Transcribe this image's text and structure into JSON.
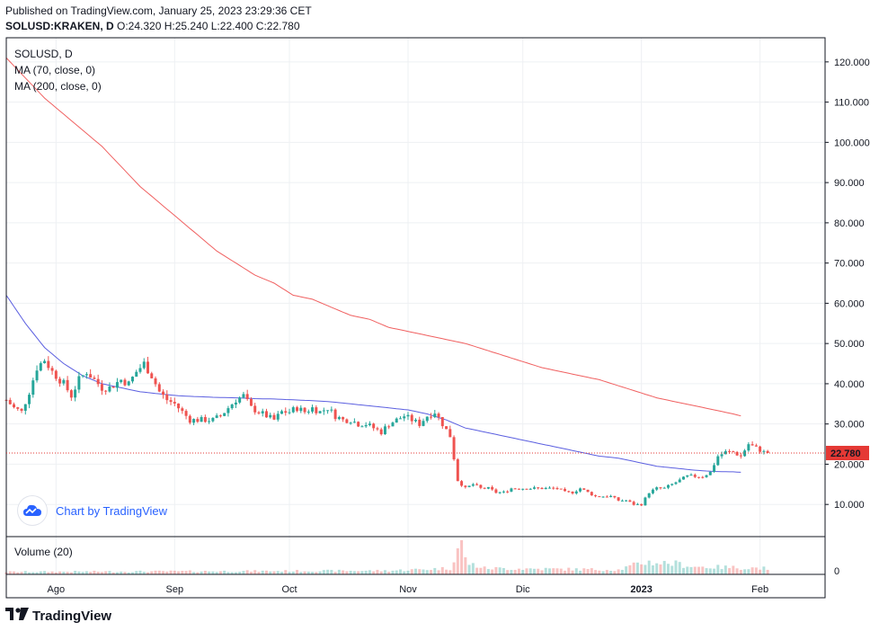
{
  "header": {
    "published": "Published on TradingView.com, January 25, 2023 23:29:36 CET",
    "symbol_line": "SOLUSD:KRAKEN, D",
    "ohlc": "O:24.320 H:25.240 L:22.400 C:22.780"
  },
  "legend": {
    "title": "SOLUSD, D",
    "ma70": "MA (70, close, 0)",
    "ma200": "MA (200, close, 0)"
  },
  "volume_title": "Volume (20)",
  "attribution": "Chart by TradingView",
  "footer_brand": "TradingView",
  "colors": {
    "up": "#26a69a",
    "down": "#ef5350",
    "ma70": "#5b5fe0",
    "ma200": "#f06060",
    "last_price": "#e53935",
    "grid": "#eef0f3"
  },
  "chart_data": {
    "type": "candlestick",
    "symbol": "SOLUSD",
    "interval": "D",
    "last_price": 22.78,
    "last_price_label": "22.780",
    "y_ticks": [
      10,
      20,
      30,
      40,
      50,
      60,
      70,
      80,
      90,
      100,
      110,
      120
    ],
    "y_tick_labels": [
      "10.000",
      "20.000",
      "30.000",
      "40.000",
      "50.000",
      "60.000",
      "70.000",
      "80.000",
      "90.000",
      "100.000",
      "110.000",
      "120.000"
    ],
    "ylim": [
      2,
      126
    ],
    "x_start_day": 0,
    "x_end_day": 214,
    "x_ticks": [
      {
        "day": 13,
        "label": "Ago"
      },
      {
        "day": 44,
        "label": "Sep"
      },
      {
        "day": 74,
        "label": "Oct"
      },
      {
        "day": 105,
        "label": "Nov"
      },
      {
        "day": 135,
        "label": "Dic"
      },
      {
        "day": 166,
        "label": "2023"
      },
      {
        "day": 197,
        "label": "Feb"
      }
    ],
    "price_anchors": [
      [
        0,
        36
      ],
      [
        2,
        34
      ],
      [
        4,
        33
      ],
      [
        6,
        38
      ],
      [
        8,
        44
      ],
      [
        10,
        46
      ],
      [
        12,
        43
      ],
      [
        15,
        40
      ],
      [
        17,
        37
      ],
      [
        19,
        41
      ],
      [
        21,
        43
      ],
      [
        23,
        41
      ],
      [
        25,
        39
      ],
      [
        27,
        39
      ],
      [
        30,
        41
      ],
      [
        32,
        40
      ],
      [
        34,
        43
      ],
      [
        36,
        45
      ],
      [
        38,
        42
      ],
      [
        40,
        38
      ],
      [
        42,
        36
      ],
      [
        44,
        35
      ],
      [
        46,
        33
      ],
      [
        48,
        31
      ],
      [
        50,
        31
      ],
      [
        52,
        31
      ],
      [
        54,
        31
      ],
      [
        56,
        32
      ],
      [
        58,
        34
      ],
      [
        60,
        36
      ],
      [
        62,
        37
      ],
      [
        64,
        34
      ],
      [
        66,
        33
      ],
      [
        68,
        32
      ],
      [
        70,
        31
      ],
      [
        72,
        33
      ],
      [
        74,
        33
      ],
      [
        76,
        34
      ],
      [
        78,
        33
      ],
      [
        80,
        34
      ],
      [
        82,
        33
      ],
      [
        84,
        34
      ],
      [
        86,
        32
      ],
      [
        88,
        31
      ],
      [
        90,
        31
      ],
      [
        92,
        30
      ],
      [
        94,
        30
      ],
      [
        96,
        29
      ],
      [
        98,
        28
      ],
      [
        100,
        30
      ],
      [
        102,
        31
      ],
      [
        104,
        32
      ],
      [
        106,
        31
      ],
      [
        108,
        30
      ],
      [
        110,
        32
      ],
      [
        112,
        33
      ],
      [
        114,
        30
      ],
      [
        116,
        27
      ],
      [
        118,
        16
      ],
      [
        120,
        14
      ],
      [
        122,
        15
      ],
      [
        124,
        14
      ],
      [
        126,
        14
      ],
      [
        128,
        13
      ],
      [
        130,
        13
      ],
      [
        132,
        14
      ],
      [
        134,
        14
      ],
      [
        136,
        14
      ],
      [
        138,
        14
      ],
      [
        140,
        14
      ],
      [
        142,
        14
      ],
      [
        144,
        14
      ],
      [
        146,
        13
      ],
      [
        148,
        13
      ],
      [
        150,
        14
      ],
      [
        152,
        13
      ],
      [
        154,
        12
      ],
      [
        156,
        12
      ],
      [
        158,
        12
      ],
      [
        160,
        11
      ],
      [
        162,
        11
      ],
      [
        164,
        10
      ],
      [
        166,
        10
      ],
      [
        168,
        13
      ],
      [
        170,
        14
      ],
      [
        172,
        14
      ],
      [
        174,
        15
      ],
      [
        176,
        16
      ],
      [
        178,
        17
      ],
      [
        180,
        17
      ],
      [
        182,
        17
      ],
      [
        184,
        18
      ],
      [
        186,
        22
      ],
      [
        188,
        23
      ],
      [
        190,
        23
      ],
      [
        192,
        22
      ],
      [
        194,
        25
      ],
      [
        196,
        24
      ],
      [
        198,
        23
      ],
      [
        199,
        22.78
      ]
    ],
    "ma70_anchors": [
      [
        0,
        62
      ],
      [
        5,
        55
      ],
      [
        10,
        49
      ],
      [
        15,
        45
      ],
      [
        20,
        42
      ],
      [
        25,
        40
      ],
      [
        30,
        39
      ],
      [
        35,
        38
      ],
      [
        40,
        37.5
      ],
      [
        45,
        37
      ],
      [
        50,
        36.8
      ],
      [
        55,
        36.6
      ],
      [
        60,
        36.5
      ],
      [
        65,
        36.3
      ],
      [
        70,
        36.2
      ],
      [
        75,
        36
      ],
      [
        80,
        35.8
      ],
      [
        85,
        35.5
      ],
      [
        90,
        35
      ],
      [
        95,
        34.5
      ],
      [
        100,
        34
      ],
      [
        105,
        33.5
      ],
      [
        110,
        32.5
      ],
      [
        115,
        31
      ],
      [
        120,
        29
      ],
      [
        125,
        28
      ],
      [
        130,
        27
      ],
      [
        135,
        26
      ],
      [
        140,
        25
      ],
      [
        145,
        24
      ],
      [
        150,
        23
      ],
      [
        155,
        22
      ],
      [
        160,
        21.5
      ],
      [
        165,
        20.5
      ],
      [
        170,
        19.5
      ],
      [
        175,
        19
      ],
      [
        180,
        18.5
      ],
      [
        185,
        18.2
      ],
      [
        190,
        18.1
      ],
      [
        192,
        18
      ]
    ],
    "ma200_anchors": [
      [
        0,
        121
      ],
      [
        5,
        116
      ],
      [
        10,
        111
      ],
      [
        15,
        107
      ],
      [
        20,
        103
      ],
      [
        25,
        99
      ],
      [
        30,
        94
      ],
      [
        35,
        89
      ],
      [
        40,
        85
      ],
      [
        45,
        81
      ],
      [
        50,
        77
      ],
      [
        55,
        73
      ],
      [
        60,
        70
      ],
      [
        65,
        67
      ],
      [
        70,
        65
      ],
      [
        75,
        62
      ],
      [
        80,
        61
      ],
      [
        85,
        59
      ],
      [
        90,
        57
      ],
      [
        95,
        56
      ],
      [
        100,
        54
      ],
      [
        105,
        53
      ],
      [
        110,
        52
      ],
      [
        115,
        51
      ],
      [
        120,
        50
      ],
      [
        125,
        48.5
      ],
      [
        130,
        47
      ],
      [
        135,
        45.5
      ],
      [
        140,
        44
      ],
      [
        145,
        43
      ],
      [
        150,
        42
      ],
      [
        155,
        41
      ],
      [
        160,
        39.5
      ],
      [
        165,
        38
      ],
      [
        170,
        36.5
      ],
      [
        175,
        35.5
      ],
      [
        180,
        34.5
      ],
      [
        185,
        33.5
      ],
      [
        190,
        32.5
      ],
      [
        192,
        32
      ]
    ],
    "volume_anchors": [
      [
        0,
        0.08
      ],
      [
        50,
        0.1
      ],
      [
        100,
        0.12
      ],
      [
        116,
        0.2
      ],
      [
        118,
        0.85
      ],
      [
        119,
        1.0
      ],
      [
        120,
        0.5
      ],
      [
        121,
        0.35
      ],
      [
        125,
        0.2
      ],
      [
        160,
        0.15
      ],
      [
        167,
        0.4
      ],
      [
        175,
        0.35
      ],
      [
        180,
        0.25
      ],
      [
        199,
        0.2
      ]
    ]
  }
}
